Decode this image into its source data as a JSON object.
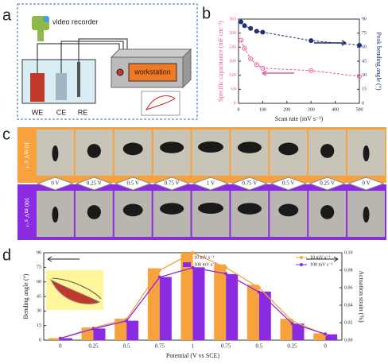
{
  "panels": [
    "a",
    "b",
    "c",
    "d"
  ],
  "panel_a": {
    "recorder": "video recorder",
    "workstation": "workstation",
    "electrodes": [
      "WE",
      "CE",
      "RE"
    ]
  },
  "panel_c": {
    "rows": [
      "10 mV s⁻¹",
      "100 mV s⁻¹"
    ],
    "potentials": [
      "0 V",
      "0.25 V",
      "0.5 V",
      "0.75 V",
      "1 V",
      "0.75 V",
      "0.5 V",
      "0.25 V",
      "0 V"
    ]
  },
  "chart_data": [
    {
      "type": "line",
      "xlabel": "Scan rate (mV s⁻¹)",
      "ylabel": "Specific capacitance (mF cm⁻²)",
      "y2label": "Peak bending angle (°)",
      "x": [
        10,
        25,
        50,
        75,
        100,
        300,
        500
      ],
      "xlim": [
        0,
        500
      ],
      "xticks": [
        0,
        100,
        200,
        300,
        400,
        500
      ],
      "ylim": [
        0,
        360
      ],
      "yticks": [
        0,
        60,
        120,
        180,
        240,
        300,
        360
      ],
      "y2lim": [
        0,
        90
      ],
      "y2ticks": [
        0,
        15,
        30,
        45,
        60,
        75,
        90
      ],
      "series": [
        {
          "color": "#f0559a",
          "values": [
            270,
            235,
            190,
            165,
            150,
            140,
            115
          ]
        },
        {
          "color": "#1f2f7a",
          "axis": "y2",
          "values": [
            87,
            83,
            80,
            77,
            76,
            67,
            62
          ]
        }
      ]
    },
    {
      "type": "bar",
      "xlabel": "Potential (V vs SCE)",
      "ylabel": "Bending angle (°)",
      "y2label": "Actuation strain (%)",
      "categories": [
        "0",
        "0.25",
        "0.5",
        "0.75",
        "1",
        "0.75",
        "0.5",
        "0.25",
        "0"
      ],
      "ylim": [
        0,
        90
      ],
      "yticks": [
        0,
        15,
        30,
        45,
        60,
        75,
        90
      ],
      "y2lim": [
        0,
        0.1
      ],
      "y2ticks": [
        {
          "value": 0,
          "label": "0.00"
        },
        0.02,
        0.04,
        0.06,
        0.08,
        {
          "value": 0.1,
          "label": "0.10"
        }
      ],
      "series": [
        {
          "name": "10 mV s⁻¹",
          "type": "bar",
          "color": "#f7a23c",
          "values": [
            2,
            13,
            22,
            74,
            90,
            78,
            57,
            22,
            7
          ]
        },
        {
          "name": "100 mV s⁻¹",
          "type": "bar",
          "color": "#8a2be2",
          "values": [
            2,
            12,
            20,
            65,
            75,
            68,
            50,
            17,
            6
          ]
        },
        {
          "name": "10 mV s⁻¹",
          "type": "line",
          "axis": "y2",
          "color": "#f7a23c",
          "values": [
            0.002,
            0.014,
            0.024,
            0.08,
            0.1,
            0.083,
            0.06,
            0.022,
            0.006
          ]
        },
        {
          "name": "100 mV s⁻¹",
          "type": "line",
          "axis": "y2",
          "color": "#8a2be2",
          "values": [
            0.002,
            0.013,
            0.022,
            0.072,
            0.083,
            0.076,
            0.055,
            0.019,
            0.007
          ]
        }
      ]
    }
  ]
}
